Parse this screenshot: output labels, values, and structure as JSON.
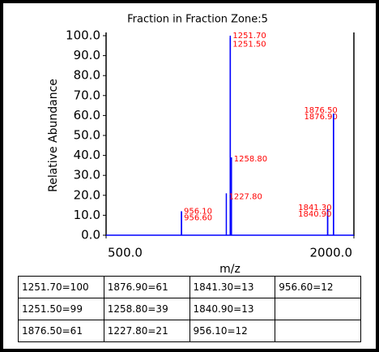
{
  "chart_data": {
    "type": "stick",
    "title": "Fraction in Fraction Zone:5",
    "x_label": "m/z",
    "y_label": "Relative Abundance",
    "x": [
      1251.7,
      1251.5,
      1876.9,
      1876.5,
      1258.8,
      1227.8,
      1841.3,
      1840.9,
      956.6,
      956.1
    ],
    "values": [
      100,
      99,
      61,
      61,
      39,
      21,
      13,
      13,
      12,
      12
    ],
    "peak_labels": [
      "1251.70",
      "1251.50",
      "1876.90",
      "1876.50",
      "1258.80",
      "1227.80",
      "1841.30",
      "1840.90",
      "956.60",
      "956.10"
    ],
    "color": "#0000ff",
    "label_color": "#ff0000",
    "xlim": [
      500,
      2000
    ],
    "xticks": [
      {
        "value": 500,
        "label": "500.0"
      },
      {
        "value": 2000,
        "label": "2000.0"
      }
    ],
    "ylim": [
      0,
      100
    ],
    "yticks": [
      {
        "value": 0,
        "label": "0.0"
      },
      {
        "value": 10,
        "label": "10.0"
      },
      {
        "value": 20,
        "label": "20.0"
      },
      {
        "value": 30,
        "label": "30.0"
      },
      {
        "value": 40,
        "label": "40.0"
      },
      {
        "value": 50,
        "label": "50.0"
      },
      {
        "value": 60,
        "label": "60.0"
      },
      {
        "value": 70,
        "label": "70.0"
      },
      {
        "value": 80,
        "label": "80.0"
      },
      {
        "value": 90,
        "label": "90.0"
      },
      {
        "value": 100,
        "label": "100.0"
      }
    ]
  },
  "table": {
    "rows": [
      [
        "1251.70=100",
        "1876.90=61",
        "1841.30=13",
        "956.60=12"
      ],
      [
        "1251.50=99",
        "1258.80=39",
        "1840.90=13"
      ],
      [
        "1876.50=61",
        "1227.80=21",
        "956.10=12"
      ]
    ]
  }
}
